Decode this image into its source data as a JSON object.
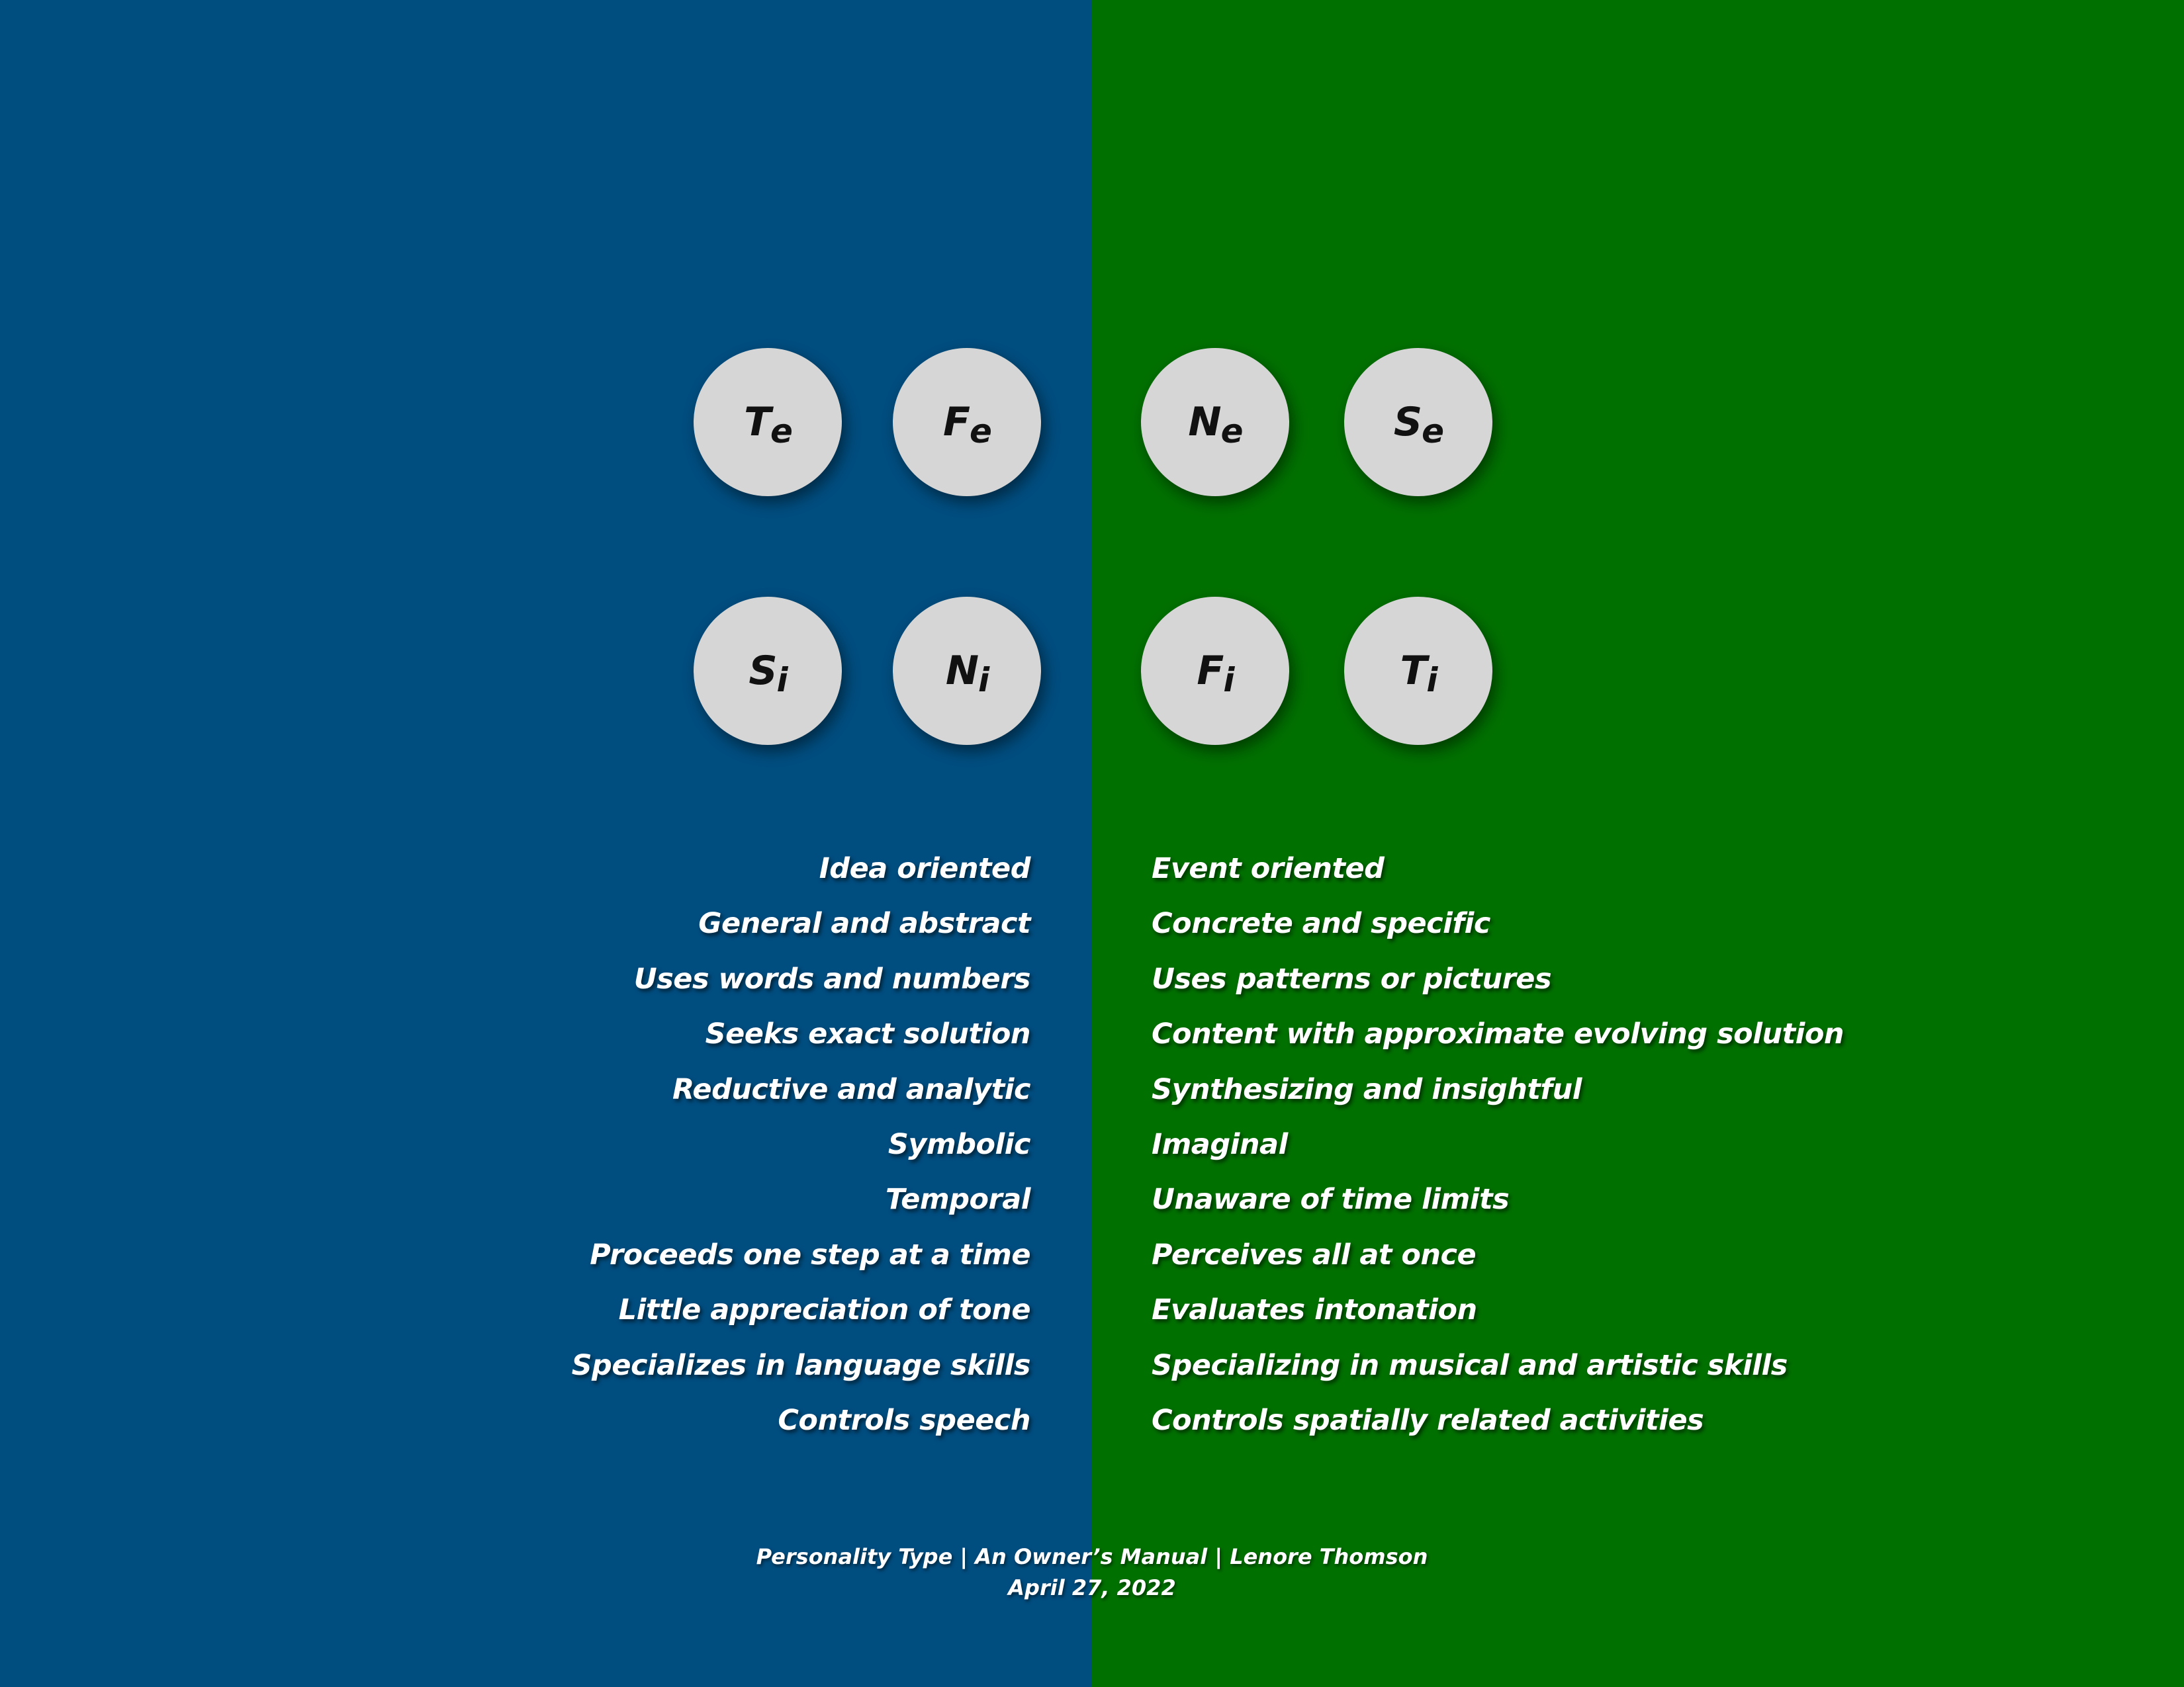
{
  "colors": {
    "left_background": "#004d7f",
    "right_background": "#007000",
    "circle_fill": "#d6d6d6",
    "circle_text": "#111111",
    "list_text": "#ffffff"
  },
  "circles": {
    "te": {
      "letter": "T",
      "sub": "e"
    },
    "fe": {
      "letter": "F",
      "sub": "e"
    },
    "ne": {
      "letter": "N",
      "sub": "e"
    },
    "se": {
      "letter": "S",
      "sub": "e"
    },
    "si": {
      "letter": "S",
      "sub": "i"
    },
    "ni": {
      "letter": "N",
      "sub": "i"
    },
    "fi": {
      "letter": "F",
      "sub": "i"
    },
    "ti": {
      "letter": "T",
      "sub": "i"
    }
  },
  "left_list": [
    "Idea oriented",
    "General and abstract",
    "Uses words and numbers",
    "Seeks exact solution",
    "Reductive and analytic",
    "Symbolic",
    "Temporal",
    "Proceeds one step at a time",
    "Little appreciation of tone",
    "Specializes in language skills",
    "Controls speech"
  ],
  "right_list": [
    "Event oriented",
    "Concrete and specific",
    "Uses patterns or pictures",
    "Content with approximate evolving solution",
    "Synthesizing and insightful",
    "Imaginal",
    "Unaware of time limits",
    "Perceives all at once",
    "Evaluates intonation",
    "Specializing in musical and artistic skills",
    "Controls spatially related activities"
  ],
  "footer": {
    "line1": "Personality Type | An Owner’s Manual | Lenore Thomson",
    "line2": "April 27, 2022"
  }
}
